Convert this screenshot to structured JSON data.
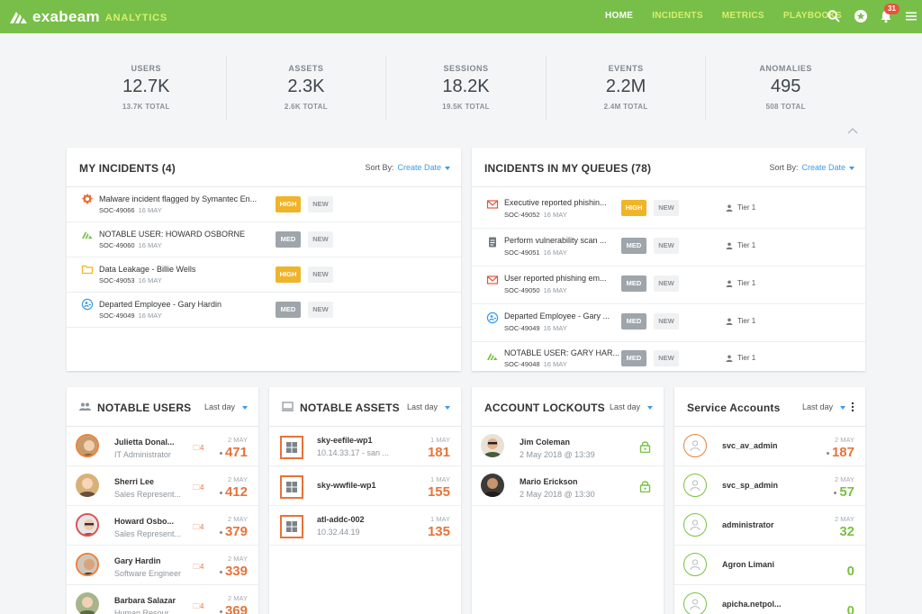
{
  "app": {
    "logo_text": "exabeam",
    "logo_sub": "ANALYTICS"
  },
  "nav": {
    "links": [
      {
        "label": "HOME"
      },
      {
        "label": "INCIDENTS"
      },
      {
        "label": "METRICS"
      },
      {
        "label": "PLAYBOOKS"
      }
    ],
    "notification_count": "31"
  },
  "stats": [
    {
      "label": "USERS",
      "value": "12.7K",
      "total": "13.7K TOTAL"
    },
    {
      "label": "ASSETS",
      "value": "2.3K",
      "total": "2.6K TOTAL"
    },
    {
      "label": "SESSIONS",
      "value": "18.2K",
      "total": "19.5K TOTAL"
    },
    {
      "label": "EVENTS",
      "value": "2.2M",
      "total": "2.4M TOTAL"
    },
    {
      "label": "ANOMALIES",
      "value": "495",
      "total": "508 TOTAL"
    }
  ],
  "my_incidents": {
    "title": "MY INCIDENTS (4)",
    "sort_label": "Sort By:",
    "sort_value": "Create Date",
    "rows": [
      {
        "title": "Malware incident flagged by Symantec En...",
        "id": "SOC-49066",
        "date": "16 MAY",
        "severity": "HIGH",
        "status": "NEW",
        "icon": "malware-icon"
      },
      {
        "title": "NOTABLE USER: HOWARD OSBORNE",
        "id": "SOC-49060",
        "date": "16 MAY",
        "severity": "MED",
        "status": "NEW",
        "icon": "notable-user-icon"
      },
      {
        "title": "Data Leakage - Billie Wells",
        "id": "SOC-49053",
        "date": "16 MAY",
        "severity": "HIGH",
        "status": "NEW",
        "icon": "folder-icon"
      },
      {
        "title": "Departed Employee - Gary Hardin",
        "id": "SOC-49049",
        "date": "16 MAY",
        "severity": "MED",
        "status": "NEW",
        "icon": "departed-employee-icon"
      }
    ]
  },
  "queue_incidents": {
    "title": "INCIDENTS IN MY QUEUES (78)",
    "sort_label": "Sort By:",
    "sort_value": "Create Date",
    "rows": [
      {
        "title": "Executive reported phishin...",
        "id": "SOC-49052",
        "date": "16 MAY",
        "severity": "HIGH",
        "status": "NEW",
        "tier": "Tier 1",
        "icon": "mail-icon"
      },
      {
        "title": "Perform vulnerability scan ...",
        "id": "SOC-49051",
        "date": "16 MAY",
        "severity": "MED",
        "status": "NEW",
        "tier": "Tier 1",
        "icon": "document-icon"
      },
      {
        "title": "User reported phishing em...",
        "id": "SOC-49050",
        "date": "16 MAY",
        "severity": "MED",
        "status": "NEW",
        "tier": "Tier 1",
        "icon": "mail-icon"
      },
      {
        "title": "Departed Employee - Gary ...",
        "id": "SOC-49049",
        "date": "16 MAY",
        "severity": "MED",
        "status": "NEW",
        "tier": "Tier 1",
        "icon": "departed-employee-icon"
      },
      {
        "title": "NOTABLE USER: GARY HAR...",
        "id": "SOC-49048",
        "date": "16 MAY",
        "severity": "MED",
        "status": "NEW",
        "tier": "Tier 1",
        "icon": "notable-user-icon"
      }
    ]
  },
  "notable_users": {
    "title": "NOTABLE USERS",
    "range": "Last day",
    "rows": [
      {
        "name": "Julietta Donal...",
        "role": "IT Administrator",
        "folders": "4",
        "date": "2 MAY",
        "score": "471"
      },
      {
        "name": "Sherri Lee",
        "role": "Sales Represent...",
        "folders": "4",
        "date": "2 MAY",
        "score": "412"
      },
      {
        "name": "Howard Osbo...",
        "role": "Sales Represent...",
        "folders": "4",
        "date": "2 MAY",
        "score": "379"
      },
      {
        "name": "Gary Hardin",
        "role": "Software Engineer",
        "folders": "4",
        "date": "2 MAY",
        "score": "339"
      },
      {
        "name": "Barbara Salazar",
        "role": "Human Resour...",
        "folders": "4",
        "date": "2 MAY",
        "score": "369"
      }
    ]
  },
  "notable_assets": {
    "title": "NOTABLE ASSETS",
    "range": "Last day",
    "rows": [
      {
        "name": "sky-eefile-wp1",
        "ip": "10.14.33.17 - san ...",
        "date": "1 MAY",
        "score": "181"
      },
      {
        "name": "sky-wwfile-wp1",
        "ip": "",
        "date": "1 MAY",
        "score": "155"
      },
      {
        "name": "atl-addc-002",
        "ip": "10.32.44.19",
        "date": "1 MAY",
        "score": "135"
      }
    ]
  },
  "account_lockouts": {
    "title": "ACCOUNT LOCKOUTS",
    "range": "Last day",
    "rows": [
      {
        "name": "Jim Coleman",
        "time": "2 May 2018 @ 13:39"
      },
      {
        "name": "Mario Erickson",
        "time": "2 May 2018 @ 13:30"
      }
    ]
  },
  "service_accounts": {
    "title": "Service Accounts",
    "range": "Last day",
    "rows": [
      {
        "name": "svc_av_admin",
        "date": "2 MAY",
        "score": "187",
        "color": "orange"
      },
      {
        "name": "svc_sp_admin",
        "date": "2 MAY",
        "score": "57",
        "color": "green"
      },
      {
        "name": "administrator",
        "date": "2 MAY",
        "score": "32",
        "color": "green"
      },
      {
        "name": "Agron Limani",
        "date": "",
        "score": "0",
        "color": "green"
      },
      {
        "name": "apicha.netpol...",
        "date": "",
        "score": "0",
        "color": "green"
      }
    ]
  },
  "colors": {
    "brand": "#78bf49",
    "accent": "#3d9be6",
    "high": "#f0b429",
    "med": "#9ea5ab",
    "score": "#e6733a",
    "badge": "#e4553b"
  }
}
